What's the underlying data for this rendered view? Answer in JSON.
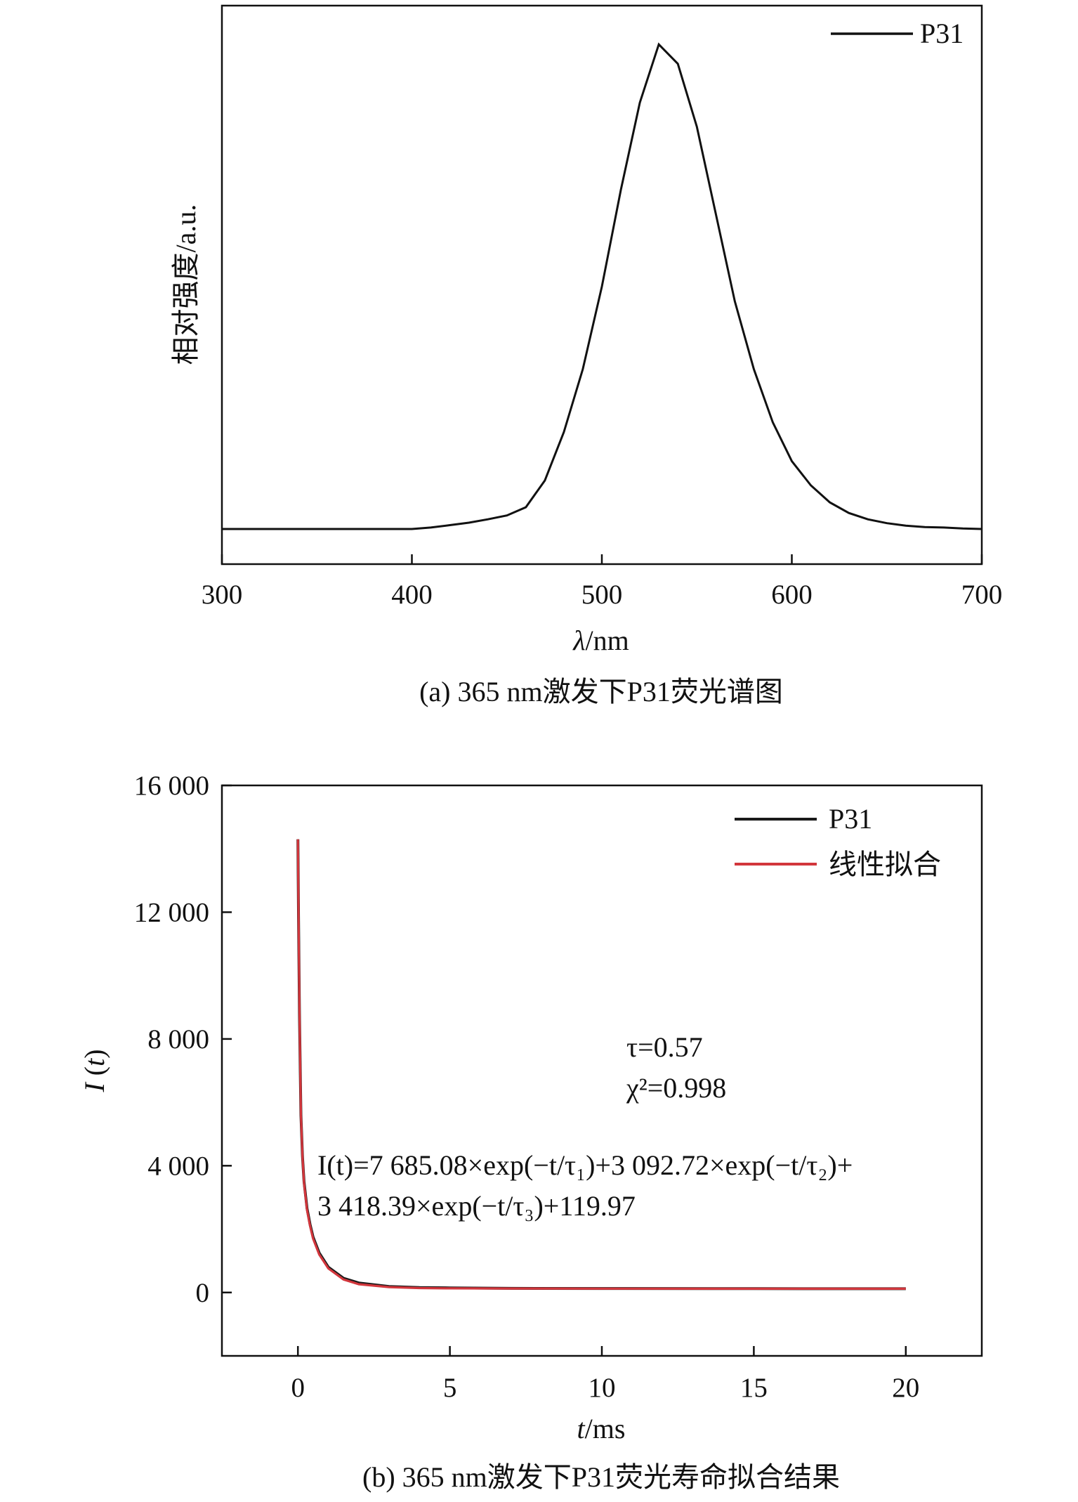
{
  "chart_data": [
    {
      "id": "a",
      "type": "line",
      "caption": "(a) 365 nm激发下P31荧光谱图",
      "xlabel_sym": "λ",
      "xlabel_unit": "/nm",
      "ylabel": "相对强度/a.u.",
      "xlim": [
        300,
        700
      ],
      "ylim": [
        0,
        1.08
      ],
      "xticks": [
        300,
        400,
        500,
        600,
        700
      ],
      "yticks_shown": false,
      "grid": false,
      "legend_position": "top-right",
      "colors": {
        "P31": "#111111"
      },
      "series": [
        {
          "name": "P31",
          "x": [
            300,
            350,
            400,
            410,
            420,
            430,
            440,
            450,
            460,
            470,
            480,
            490,
            500,
            510,
            520,
            530,
            540,
            550,
            560,
            570,
            580,
            590,
            600,
            610,
            620,
            630,
            640,
            650,
            660,
            670,
            680,
            690,
            700
          ],
          "values": [
            0.0,
            0.0,
            0.0,
            0.003,
            0.008,
            0.013,
            0.02,
            0.028,
            0.045,
            0.1,
            0.2,
            0.33,
            0.5,
            0.7,
            0.88,
            1.0,
            0.96,
            0.83,
            0.65,
            0.47,
            0.33,
            0.22,
            0.14,
            0.09,
            0.055,
            0.033,
            0.02,
            0.012,
            0.007,
            0.004,
            0.003,
            0.001,
            0.0
          ]
        }
      ]
    },
    {
      "id": "b",
      "type": "line",
      "caption": "(b) 365 nm激发下P31荧光寿命拟合结果",
      "xlabel_sym": "t",
      "xlabel_unit": "/ms",
      "ylabel_sym": "I",
      "ylabel_arg": "t",
      "xlim": [
        -2.5,
        22.5
      ],
      "ylim": [
        -2000,
        16000
      ],
      "xticks": [
        0,
        5,
        10,
        15,
        20
      ],
      "yticks": [
        0,
        4000,
        8000,
        12000,
        16000
      ],
      "ytick_labels": [
        "0",
        "4 000",
        "8 000",
        "12 000",
        "16 000"
      ],
      "grid": false,
      "legend_position": "top-right",
      "colors": {
        "P31": "#1a1a1a",
        "线性拟合": "#d2363c"
      },
      "series": [
        {
          "name": "P31",
          "x": [
            0,
            0.02,
            0.05,
            0.1,
            0.15,
            0.2,
            0.3,
            0.4,
            0.5,
            0.7,
            1.0,
            1.5,
            2.0,
            3.0,
            4.0,
            5.0,
            7.0,
            10.0,
            15.0,
            20.0
          ],
          "values": [
            14300,
            11800,
            8800,
            5600,
            4300,
            3500,
            2650,
            2150,
            1750,
            1250,
            800,
            450,
            300,
            190,
            155,
            145,
            130,
            125,
            122,
            120
          ]
        },
        {
          "name": "线性拟合",
          "x": [
            0,
            0.02,
            0.05,
            0.1,
            0.15,
            0.2,
            0.3,
            0.4,
            0.5,
            0.7,
            1.0,
            1.5,
            2.0,
            3.0,
            4.0,
            5.0,
            7.0,
            10.0,
            15.0,
            20.0
          ],
          "values": [
            14300,
            11900,
            8900,
            5600,
            4300,
            3450,
            2600,
            2100,
            1700,
            1200,
            760,
            410,
            260,
            170,
            140,
            130,
            125,
            121,
            120,
            120
          ]
        }
      ],
      "annotations": {
        "tau_line": "τ=0.57",
        "chi_line": "χ²=0.998",
        "eq_line1": "I(t)=7 685.08×exp(−t/τ₁)+3 092.72×exp(−t/τ₂)+",
        "eq_line2": "3 418.39×exp(−t/τ₃)+119.97"
      }
    }
  ]
}
